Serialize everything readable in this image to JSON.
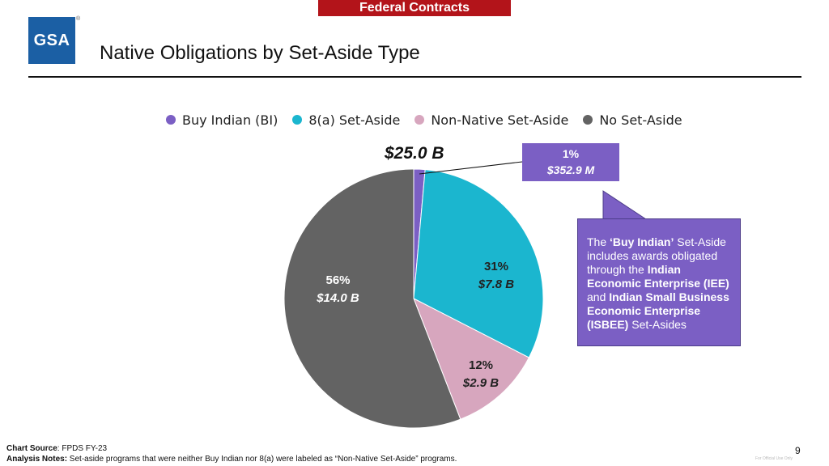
{
  "banner": "Federal Contracts",
  "logo_text": "GSA",
  "logo_reg": "®",
  "title": "Native Obligations by Set-Aside Type",
  "chart_data": {
    "type": "pie",
    "title": "Native Obligations by Set-Aside Type",
    "total_label": "$25.0 B",
    "unit": "Billion USD",
    "categories": [
      "Buy Indian (BI)",
      "8(a) Set-Aside",
      "Non-Native Set-Aside",
      "No Set-Aside"
    ],
    "values": [
      0.3529,
      7.8,
      2.9,
      14.0
    ],
    "percent_labels": [
      "1%",
      "31%",
      "12%",
      "56%"
    ],
    "amount_labels": [
      "$352.9 M",
      "$7.8 B",
      "$2.9 B",
      "$14.0 B"
    ],
    "colors": [
      "#7b5fc4",
      "#1bb6cf",
      "#d7a6be",
      "#636363"
    ],
    "legend_position": "top"
  },
  "note": {
    "t1": "The ",
    "b1": "‘Buy Indian’",
    "t2": " Set-Aside includes awards obligated through the ",
    "b2": "Indian Economic Enterprise (IEE)",
    "t3": " and ",
    "b3": "Indian Small Business Economic Enterprise (ISBEE)",
    "t4": " Set-Asides"
  },
  "footer": {
    "source_label": "Chart Source",
    "source_text": ": FPDS FY-23",
    "notes_label": "Analysis Notes:",
    "notes_text": " Set-aside programs that were neither Buy Indian nor 8(a) were labeled as “Non-Native Set-Aside” programs."
  },
  "page_number": "9",
  "fine_print": "For Official Use Only"
}
